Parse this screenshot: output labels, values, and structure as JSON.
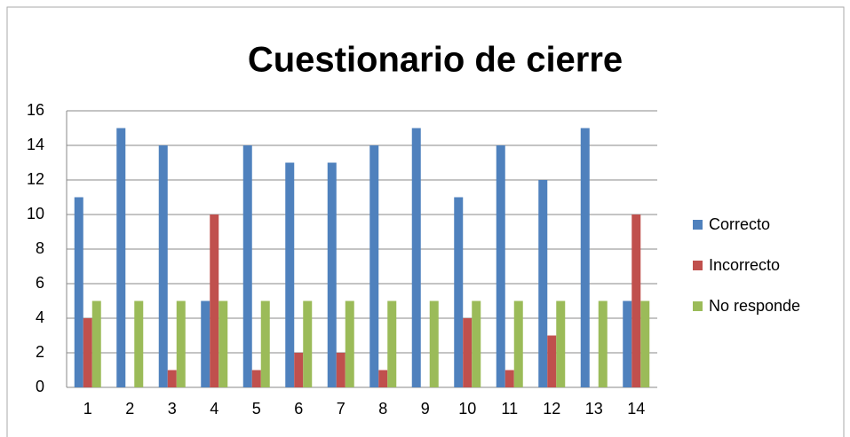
{
  "chart_data": {
    "type": "bar",
    "title": "Cuestionario de cierre",
    "categories": [
      "1",
      "2",
      "3",
      "4",
      "5",
      "6",
      "7",
      "8",
      "9",
      "10",
      "11",
      "12",
      "13",
      "14"
    ],
    "series": [
      {
        "name": "Correcto",
        "color": "#4f81bd",
        "values": [
          11,
          15,
          14,
          5,
          14,
          13,
          13,
          14,
          15,
          11,
          14,
          12,
          15,
          5
        ]
      },
      {
        "name": "Incorrecto",
        "color": "#c0504d",
        "values": [
          4,
          0,
          1,
          10,
          1,
          2,
          2,
          1,
          0,
          4,
          1,
          3,
          0,
          10
        ]
      },
      {
        "name": "No responde",
        "color": "#9bbb59",
        "values": [
          5,
          5,
          5,
          5,
          5,
          5,
          5,
          5,
          5,
          5,
          5,
          5,
          5,
          5
        ]
      }
    ],
    "ylim": [
      0,
      16
    ],
    "yticks": [
      0,
      2,
      4,
      6,
      8,
      10,
      12,
      14,
      16
    ],
    "grid": true,
    "legend": "right"
  }
}
